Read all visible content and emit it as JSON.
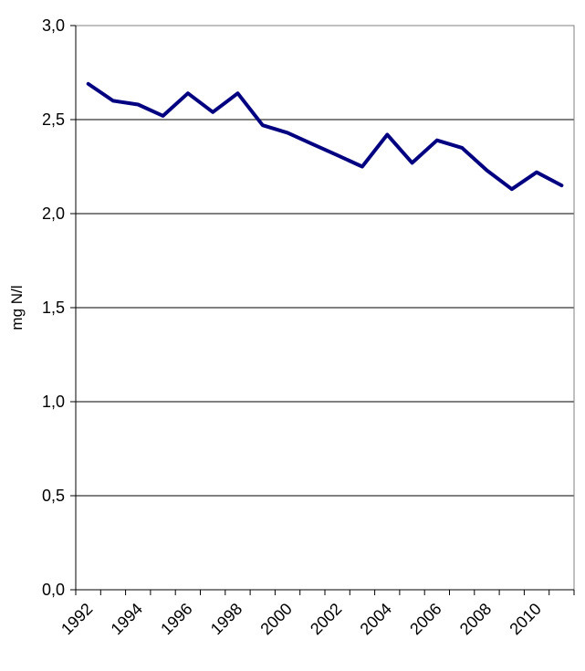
{
  "chart_data": {
    "type": "line",
    "title": "",
    "xlabel": "",
    "ylabel": "mg N/l",
    "ylim": [
      0,
      3
    ],
    "y_ticks": [
      "0,0",
      "0,5",
      "1,0",
      "1,5",
      "2,0",
      "2,5",
      "3,0"
    ],
    "y_tick_values": [
      0,
      0.5,
      1,
      1.5,
      2,
      2.5,
      3
    ],
    "x_tick_labels": [
      "1992",
      "1994",
      "1996",
      "1998",
      "2000",
      "2002",
      "2004",
      "2006",
      "2008",
      "2010"
    ],
    "grid": true,
    "legend": "none",
    "series": [
      {
        "color": "#000080",
        "x": [
          1992,
          1993,
          1994,
          1995,
          1996,
          1997,
          1998,
          1999,
          2000,
          2001,
          2002,
          2003,
          2004,
          2005,
          2006,
          2007,
          2008,
          2009,
          2010,
          2011
        ],
        "values": [
          2.69,
          2.6,
          2.58,
          2.52,
          2.64,
          2.54,
          2.64,
          2.47,
          2.43,
          2.37,
          2.31,
          2.25,
          2.42,
          2.27,
          2.39,
          2.35,
          2.23,
          2.13,
          2.22,
          2.15
        ]
      }
    ]
  }
}
